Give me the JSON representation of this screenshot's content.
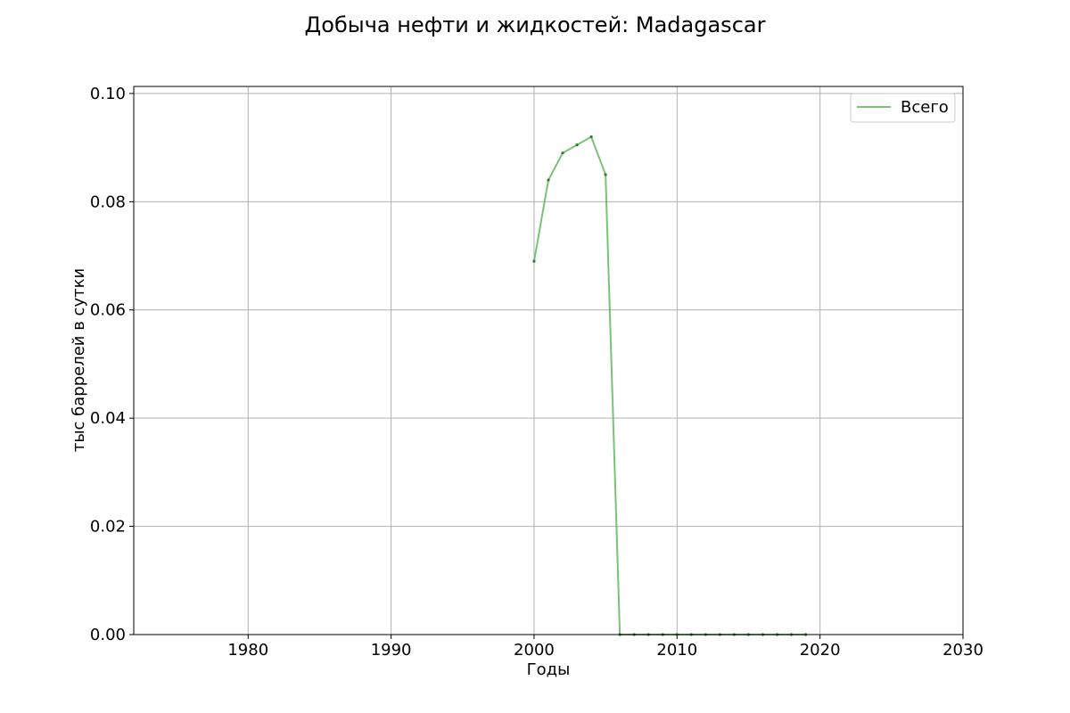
{
  "chart_data": {
    "type": "line",
    "title": "Добыча нефти и жидкостей: Madagascar",
    "xlabel": "Годы",
    "ylabel": "тыс баррелей в сутки",
    "xlim": [
      1972,
      2030
    ],
    "ylim": [
      0,
      0.1013
    ],
    "xticks": [
      1980,
      1990,
      2000,
      2010,
      2020,
      2030
    ],
    "yticks": [
      0.0,
      0.02,
      0.04,
      0.06,
      0.08,
      0.1
    ],
    "ytick_labels": [
      "0.00",
      "0.02",
      "0.04",
      "0.06",
      "0.08",
      "0.10"
    ],
    "grid": true,
    "legend_position": "top-right",
    "series": [
      {
        "name": "Всего",
        "color": "#4daf4a",
        "x": [
          2000,
          2001,
          2002,
          2003,
          2004,
          2005,
          2006,
          2007,
          2008,
          2009,
          2010,
          2011,
          2012,
          2013,
          2014,
          2015,
          2016,
          2017,
          2018,
          2019
        ],
        "y": [
          0.069,
          0.084,
          0.089,
          0.0905,
          0.092,
          0.085,
          0,
          0,
          0,
          0,
          0,
          0,
          0,
          0,
          0,
          0,
          0,
          0,
          0,
          0
        ]
      }
    ]
  }
}
